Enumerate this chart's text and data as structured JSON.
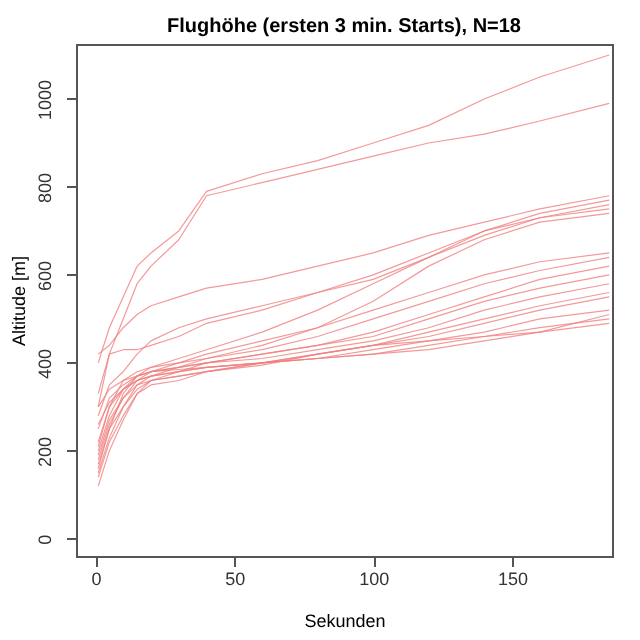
{
  "chart_data": {
    "type": "line",
    "title": "Flughöhe (ersten 3 min. Starts), N=18",
    "xlabel": "Sekunden",
    "ylabel": "Altitude [m]",
    "x": [
      1,
      5,
      10,
      15,
      20,
      30,
      40,
      60,
      80,
      100,
      120,
      140,
      160,
      185
    ],
    "series": [
      {
        "color": "#f08080",
        "values": [
          400,
          480,
          550,
          620,
          650,
          700,
          790,
          830,
          860,
          900,
          940,
          1000,
          1050,
          1100
        ]
      },
      {
        "color": "#f08080",
        "values": [
          300,
          420,
          500,
          580,
          620,
          680,
          780,
          810,
          840,
          870,
          900,
          920,
          950,
          990
        ]
      },
      {
        "color": "#f08080",
        "values": [
          420,
          440,
          480,
          510,
          530,
          550,
          570,
          590,
          620,
          650,
          690,
          720,
          750,
          780
        ]
      },
      {
        "color": "#f08080",
        "values": [
          330,
          420,
          430,
          430,
          440,
          460,
          490,
          520,
          560,
          600,
          650,
          700,
          740,
          770
        ]
      },
      {
        "color": "#f08080",
        "values": [
          280,
          350,
          380,
          420,
          450,
          480,
          500,
          530,
          560,
          590,
          640,
          690,
          730,
          760
        ]
      },
      {
        "color": "#f08080",
        "values": [
          210,
          300,
          360,
          380,
          390,
          410,
          430,
          470,
          520,
          580,
          640,
          700,
          730,
          750
        ]
      },
      {
        "color": "#f08080",
        "values": [
          160,
          250,
          330,
          370,
          390,
          400,
          410,
          440,
          480,
          540,
          620,
          680,
          720,
          740
        ]
      },
      {
        "color": "#f08080",
        "values": [
          200,
          280,
          340,
          370,
          380,
          400,
          420,
          450,
          480,
          520,
          560,
          600,
          630,
          650
        ]
      },
      {
        "color": "#f08080",
        "values": [
          180,
          260,
          320,
          360,
          380,
          390,
          410,
          430,
          460,
          500,
          540,
          580,
          610,
          640
        ]
      },
      {
        "color": "#f08080",
        "values": [
          150,
          230,
          300,
          350,
          370,
          390,
          400,
          420,
          440,
          470,
          510,
          550,
          590,
          620
        ]
      },
      {
        "color": "#f08080",
        "values": [
          120,
          200,
          270,
          330,
          360,
          380,
          400,
          420,
          440,
          460,
          500,
          540,
          570,
          600
        ]
      },
      {
        "color": "#f08080",
        "values": [
          250,
          320,
          350,
          370,
          380,
          390,
          400,
          410,
          430,
          450,
          480,
          520,
          550,
          580
        ]
      },
      {
        "color": "#f08080",
        "values": [
          220,
          300,
          340,
          360,
          370,
          380,
          390,
          400,
          420,
          440,
          470,
          500,
          530,
          560
        ]
      },
      {
        "color": "#f08080",
        "values": [
          170,
          250,
          300,
          340,
          360,
          370,
          380,
          400,
          420,
          440,
          460,
          490,
          520,
          550
        ]
      },
      {
        "color": "#f08080",
        "values": [
          140,
          220,
          280,
          330,
          350,
          360,
          380,
          400,
          410,
          430,
          450,
          470,
          500,
          520
        ]
      },
      {
        "color": "#f08080",
        "values": [
          260,
          310,
          340,
          360,
          370,
          380,
          390,
          400,
          410,
          420,
          440,
          460,
          480,
          500
        ]
      },
      {
        "color": "#f08080",
        "values": [
          300,
          340,
          360,
          370,
          380,
          385,
          390,
          400,
          410,
          420,
          430,
          450,
          470,
          490
        ]
      },
      {
        "color": "#f08080",
        "values": [
          190,
          270,
          320,
          350,
          360,
          370,
          380,
          395,
          420,
          440,
          450,
          460,
          470,
          510
        ]
      }
    ],
    "xlim": [
      -7,
      186
    ],
    "xticks": [
      0,
      50,
      100,
      150
    ],
    "ylim": [
      -39,
      1125
    ],
    "yticks": [
      0,
      200,
      400,
      600,
      800,
      1000
    ],
    "grid": false,
    "marker": "none",
    "line_style": "solid"
  }
}
